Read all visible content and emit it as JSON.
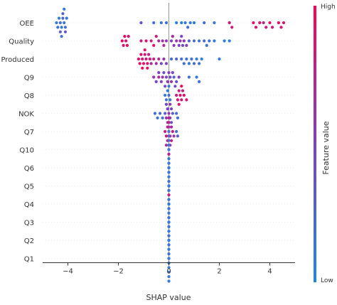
{
  "chart_data": {
    "type": "scatter",
    "title": "",
    "xlabel": "SHAP value",
    "xlim": [
      -5,
      5
    ],
    "xticks": [
      -4,
      -2,
      0,
      2,
      4
    ],
    "colorbar": {
      "label": "Feature value",
      "high_label": "High",
      "low_label": "Low",
      "low_color": "#1e88e5",
      "high_color": "#ff0052"
    },
    "features": [
      {
        "name": "OEE",
        "points": [
          {
            "x": -4.45,
            "v": 0.1
          },
          {
            "x": -4.4,
            "v": 0.15
          },
          {
            "x": -4.35,
            "v": 0.1
          },
          {
            "x": -4.3,
            "v": 0.2
          },
          {
            "x": -4.25,
            "v": 0.1
          },
          {
            "x": -4.2,
            "v": 0.25
          },
          {
            "x": -4.15,
            "v": 0.15
          },
          {
            "x": -4.1,
            "v": 0.2
          },
          {
            "x": -4.05,
            "v": 0.1
          },
          {
            "x": -4.3,
            "v": 0.3
          },
          {
            "x": -4.2,
            "v": 0.3
          },
          {
            "x": -4.1,
            "v": 0.35
          },
          {
            "x": -4.25,
            "v": 0.2
          },
          {
            "x": -4.15,
            "v": 0.1
          },
          {
            "x": -1.1,
            "v": 0.4
          },
          {
            "x": -0.6,
            "v": 0.2
          },
          {
            "x": -0.3,
            "v": 0.1
          },
          {
            "x": -0.1,
            "v": 0.2
          },
          {
            "x": 0.3,
            "v": 0.1
          },
          {
            "x": 0.5,
            "v": 0.05
          },
          {
            "x": 0.65,
            "v": 0.1
          },
          {
            "x": 0.75,
            "v": 0.2
          },
          {
            "x": 0.85,
            "v": 0.1
          },
          {
            "x": 1.0,
            "v": 0.05
          },
          {
            "x": 1.4,
            "v": 0.2
          },
          {
            "x": 1.8,
            "v": 0.1
          },
          {
            "x": 2.4,
            "v": 0.85
          },
          {
            "x": 2.5,
            "v": 0.8
          },
          {
            "x": 3.35,
            "v": 0.9
          },
          {
            "x": 3.45,
            "v": 0.85
          },
          {
            "x": 3.6,
            "v": 0.9
          },
          {
            "x": 3.75,
            "v": 0.75
          },
          {
            "x": 3.85,
            "v": 0.8
          },
          {
            "x": 4.0,
            "v": 0.9
          },
          {
            "x": 4.1,
            "v": 0.85
          },
          {
            "x": 4.35,
            "v": 0.95
          },
          {
            "x": 4.45,
            "v": 0.9
          },
          {
            "x": 4.55,
            "v": 0.9
          }
        ]
      },
      {
        "name": "Quality",
        "points": [
          {
            "x": -1.85,
            "v": 0.95
          },
          {
            "x": -1.8,
            "v": 0.9
          },
          {
            "x": -1.75,
            "v": 0.95
          },
          {
            "x": -1.7,
            "v": 0.9
          },
          {
            "x": -1.65,
            "v": 0.95
          },
          {
            "x": -1.6,
            "v": 0.85
          },
          {
            "x": -1.1,
            "v": 0.8
          },
          {
            "x": -0.9,
            "v": 0.85
          },
          {
            "x": -0.7,
            "v": 0.8
          },
          {
            "x": -0.6,
            "v": 0.9
          },
          {
            "x": -0.4,
            "v": 0.7
          },
          {
            "x": -0.25,
            "v": 0.6
          },
          {
            "x": -0.1,
            "v": 0.6
          },
          {
            "x": 0.1,
            "v": 0.5
          },
          {
            "x": 0.2,
            "v": 0.55
          },
          {
            "x": 0.3,
            "v": 0.6
          },
          {
            "x": 0.4,
            "v": 0.5
          },
          {
            "x": 0.45,
            "v": 0.6
          },
          {
            "x": 0.5,
            "v": 0.5
          },
          {
            "x": 0.55,
            "v": 0.4
          },
          {
            "x": 0.6,
            "v": 0.6
          },
          {
            "x": 0.7,
            "v": 0.5
          },
          {
            "x": 0.8,
            "v": 0.3
          },
          {
            "x": 1.0,
            "v": 0.2
          },
          {
            "x": 1.2,
            "v": 0.15
          },
          {
            "x": 1.4,
            "v": 0.2
          },
          {
            "x": 1.5,
            "v": 0.1
          },
          {
            "x": 1.6,
            "v": 0.15
          },
          {
            "x": 1.8,
            "v": 0.1
          },
          {
            "x": 2.2,
            "v": 0.1
          },
          {
            "x": 2.4,
            "v": 0.05
          },
          {
            "x": -0.5,
            "v": 0.8
          },
          {
            "x": -0.2,
            "v": 0.7
          },
          {
            "x": 0.15,
            "v": 0.7
          }
        ]
      },
      {
        "name": "Produced",
        "points": [
          {
            "x": -1.2,
            "v": 0.9
          },
          {
            "x": -1.15,
            "v": 0.95
          },
          {
            "x": -1.1,
            "v": 0.9
          },
          {
            "x": -1.05,
            "v": 0.85
          },
          {
            "x": -1.0,
            "v": 0.9
          },
          {
            "x": -0.95,
            "v": 0.8
          },
          {
            "x": -0.9,
            "v": 0.85
          },
          {
            "x": -0.85,
            "v": 0.9
          },
          {
            "x": -0.8,
            "v": 0.8
          },
          {
            "x": -0.75,
            "v": 0.85
          },
          {
            "x": -0.7,
            "v": 0.7
          },
          {
            "x": -0.6,
            "v": 0.8
          },
          {
            "x": -0.5,
            "v": 0.6
          },
          {
            "x": -0.4,
            "v": 0.7
          },
          {
            "x": -0.3,
            "v": 0.5
          },
          {
            "x": -0.2,
            "v": 0.6
          },
          {
            "x": -0.1,
            "v": 0.5
          },
          {
            "x": 0.1,
            "v": 0.2
          },
          {
            "x": 0.3,
            "v": 0.25
          },
          {
            "x": 0.5,
            "v": 0.2
          },
          {
            "x": 0.6,
            "v": 0.15
          },
          {
            "x": 0.7,
            "v": 0.2
          },
          {
            "x": 0.8,
            "v": 0.1
          },
          {
            "x": 0.9,
            "v": 0.15
          },
          {
            "x": 1.0,
            "v": 0.2
          },
          {
            "x": 1.1,
            "v": 0.1
          },
          {
            "x": 1.2,
            "v": 0.15
          },
          {
            "x": 1.3,
            "v": 0.1
          },
          {
            "x": 2.0,
            "v": 0.1
          },
          {
            "x": -1.05,
            "v": 0.95
          },
          {
            "x": -0.95,
            "v": 0.9
          },
          {
            "x": -0.85,
            "v": 0.95
          }
        ]
      },
      {
        "name": "Q9",
        "points": [
          {
            "x": -0.6,
            "v": 0.6
          },
          {
            "x": -0.5,
            "v": 0.5
          },
          {
            "x": -0.4,
            "v": 0.7
          },
          {
            "x": -0.3,
            "v": 0.5
          },
          {
            "x": -0.25,
            "v": 0.6
          },
          {
            "x": -0.2,
            "v": 0.4
          },
          {
            "x": -0.1,
            "v": 0.5
          },
          {
            "x": -0.05,
            "v": 0.6
          },
          {
            "x": 0.05,
            "v": 0.4
          },
          {
            "x": 0.1,
            "v": 0.6
          },
          {
            "x": 0.15,
            "v": 0.5
          },
          {
            "x": 0.2,
            "v": 0.3
          },
          {
            "x": 0.3,
            "v": 0.4
          },
          {
            "x": 0.4,
            "v": 0.5
          },
          {
            "x": 0.8,
            "v": 0.2
          },
          {
            "x": 1.1,
            "v": 0.1
          },
          {
            "x": 1.2,
            "v": 0.2
          },
          {
            "x": -0.4,
            "v": 0.5
          },
          {
            "x": -0.15,
            "v": 0.45
          },
          {
            "x": 0.0,
            "v": 0.55
          },
          {
            "x": 0.25,
            "v": 0.45
          }
        ]
      },
      {
        "name": "Q8",
        "points": [
          {
            "x": -0.15,
            "v": 0.1
          },
          {
            "x": -0.1,
            "v": 0.15
          },
          {
            "x": -0.05,
            "v": 0.1
          },
          {
            "x": 0.0,
            "v": 0.2
          },
          {
            "x": 0.05,
            "v": 0.1
          },
          {
            "x": -0.1,
            "v": 0.2
          },
          {
            "x": 0.0,
            "v": 0.1
          },
          {
            "x": -0.05,
            "v": 0.2
          },
          {
            "x": 0.3,
            "v": 0.8
          },
          {
            "x": 0.35,
            "v": 0.85
          },
          {
            "x": 0.4,
            "v": 0.8
          },
          {
            "x": 0.45,
            "v": 0.9
          },
          {
            "x": 0.5,
            "v": 0.85
          },
          {
            "x": 0.55,
            "v": 0.8
          },
          {
            "x": 0.6,
            "v": 0.9
          },
          {
            "x": 0.7,
            "v": 0.85
          },
          {
            "x": 0.4,
            "v": 0.9
          },
          {
            "x": 0.5,
            "v": 0.95
          }
        ]
      },
      {
        "name": "NOK",
        "points": [
          {
            "x": -0.55,
            "v": 0.2
          },
          {
            "x": -0.45,
            "v": 0.15
          },
          {
            "x": -0.35,
            "v": 0.2
          },
          {
            "x": -0.25,
            "v": 0.15
          },
          {
            "x": -0.15,
            "v": 0.3
          },
          {
            "x": -0.1,
            "v": 0.6
          },
          {
            "x": -0.05,
            "v": 0.5
          },
          {
            "x": 0.0,
            "v": 0.6
          },
          {
            "x": 0.05,
            "v": 0.4
          },
          {
            "x": 0.1,
            "v": 0.5
          },
          {
            "x": 0.15,
            "v": 0.3
          },
          {
            "x": 0.3,
            "v": 0.2
          },
          {
            "x": 0.35,
            "v": 0.15
          },
          {
            "x": -0.05,
            "v": 0.55
          },
          {
            "x": 0.05,
            "v": 0.6
          },
          {
            "x": -0.1,
            "v": 0.45
          },
          {
            "x": 0.1,
            "v": 0.35
          },
          {
            "x": 0.0,
            "v": 0.4
          }
        ]
      },
      {
        "name": "Q7",
        "points": [
          {
            "x": -0.15,
            "v": 0.8
          },
          {
            "x": -0.1,
            "v": 0.85
          },
          {
            "x": -0.05,
            "v": 0.8
          },
          {
            "x": 0.0,
            "v": 0.9
          },
          {
            "x": 0.05,
            "v": 0.85
          },
          {
            "x": 0.1,
            "v": 0.7
          },
          {
            "x": 0.15,
            "v": 0.8
          },
          {
            "x": 0.2,
            "v": 0.6
          },
          {
            "x": 0.3,
            "v": 0.2
          },
          {
            "x": 0.35,
            "v": 0.3
          },
          {
            "x": -0.05,
            "v": 0.9
          },
          {
            "x": 0.0,
            "v": 0.8
          },
          {
            "x": 0.05,
            "v": 0.7
          },
          {
            "x": 0.1,
            "v": 0.85
          },
          {
            "x": -0.1,
            "v": 0.7
          },
          {
            "x": 0.0,
            "v": 0.75
          }
        ]
      },
      {
        "name": "Q10",
        "points": [
          {
            "x": 0.0,
            "v": 0.1
          },
          {
            "x": 0.0,
            "v": 0.1
          },
          {
            "x": 0.0,
            "v": 0.1
          },
          {
            "x": 0.0,
            "v": 0.15
          },
          {
            "x": 0.0,
            "v": 0.1
          },
          {
            "x": 0.0,
            "v": 0.1
          },
          {
            "x": 0.0,
            "v": 0.15
          },
          {
            "x": 0.0,
            "v": 0.1
          },
          {
            "x": 0.0,
            "v": 0.1
          },
          {
            "x": 0.0,
            "v": 0.1
          }
        ]
      },
      {
        "name": "Q6",
        "points": [
          {
            "x": 0.0,
            "v": 0.1
          },
          {
            "x": 0.0,
            "v": 0.1
          },
          {
            "x": 0.0,
            "v": 0.15
          },
          {
            "x": 0.0,
            "v": 0.1
          },
          {
            "x": 0.0,
            "v": 0.1
          },
          {
            "x": 0.0,
            "v": 0.1
          },
          {
            "x": 0.0,
            "v": 0.8
          },
          {
            "x": 0.0,
            "v": 0.1
          },
          {
            "x": 0.0,
            "v": 0.15
          },
          {
            "x": 0.0,
            "v": 0.1
          }
        ]
      },
      {
        "name": "Q5",
        "points": [
          {
            "x": 0.0,
            "v": 0.1
          },
          {
            "x": 0.0,
            "v": 0.1
          },
          {
            "x": 0.0,
            "v": 0.15
          },
          {
            "x": 0.0,
            "v": 0.1
          },
          {
            "x": 0.0,
            "v": 0.1
          },
          {
            "x": 0.0,
            "v": 0.1
          },
          {
            "x": 0.0,
            "v": 0.15
          },
          {
            "x": 0.0,
            "v": 0.1
          },
          {
            "x": 0.0,
            "v": 0.1
          },
          {
            "x": 0.0,
            "v": 0.1
          }
        ]
      },
      {
        "name": "Q4",
        "points": [
          {
            "x": 0.0,
            "v": 0.1
          },
          {
            "x": 0.0,
            "v": 0.1
          },
          {
            "x": 0.0,
            "v": 0.15
          },
          {
            "x": 0.0,
            "v": 0.1
          },
          {
            "x": 0.0,
            "v": 0.8
          },
          {
            "x": 0.0,
            "v": 0.1
          },
          {
            "x": 0.0,
            "v": 0.15
          },
          {
            "x": 0.0,
            "v": 0.1
          },
          {
            "x": 0.0,
            "v": 0.1
          },
          {
            "x": 0.0,
            "v": 0.1
          }
        ]
      },
      {
        "name": "Q3",
        "points": [
          {
            "x": 0.0,
            "v": 0.1
          },
          {
            "x": 0.0,
            "v": 0.1
          },
          {
            "x": 0.0,
            "v": 0.15
          },
          {
            "x": 0.0,
            "v": 0.1
          },
          {
            "x": 0.0,
            "v": 0.1
          },
          {
            "x": 0.0,
            "v": 0.1
          },
          {
            "x": 0.0,
            "v": 0.15
          },
          {
            "x": 0.0,
            "v": 0.1
          },
          {
            "x": 0.0,
            "v": 0.1
          },
          {
            "x": 0.0,
            "v": 0.1
          }
        ]
      },
      {
        "name": "Q2",
        "points": [
          {
            "x": 0.0,
            "v": 0.1
          },
          {
            "x": 0.0,
            "v": 0.1
          },
          {
            "x": 0.0,
            "v": 0.15
          },
          {
            "x": 0.0,
            "v": 0.1
          },
          {
            "x": 0.0,
            "v": 0.1
          },
          {
            "x": 0.0,
            "v": 0.1
          },
          {
            "x": 0.0,
            "v": 0.15
          },
          {
            "x": 0.0,
            "v": 0.1
          },
          {
            "x": 0.0,
            "v": 0.1
          },
          {
            "x": 0.0,
            "v": 0.1
          }
        ]
      },
      {
        "name": "Q1",
        "points": [
          {
            "x": 0.0,
            "v": 0.1
          },
          {
            "x": 0.0,
            "v": 0.1
          },
          {
            "x": 0.0,
            "v": 0.15
          },
          {
            "x": 0.0,
            "v": 0.1
          },
          {
            "x": 0.0,
            "v": 0.1
          },
          {
            "x": 0.0,
            "v": 0.1
          },
          {
            "x": 0.0,
            "v": 0.15
          },
          {
            "x": 0.0,
            "v": 0.1
          },
          {
            "x": 0.0,
            "v": 0.1
          },
          {
            "x": 0.0,
            "v": 0.1
          }
        ]
      }
    ]
  }
}
